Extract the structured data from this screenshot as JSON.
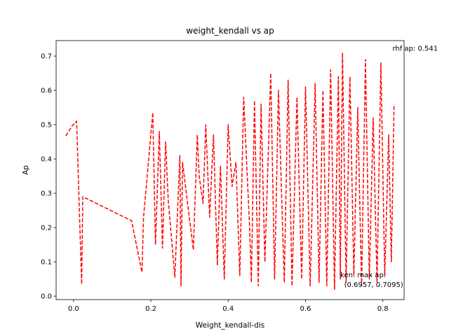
{
  "chart_data": {
    "type": "line",
    "title": "weight_kendall vs ap",
    "xlabel": "Weight_kendall-dis",
    "ylabel": "Ap",
    "xlim": [
      -0.045,
      0.855
    ],
    "ylim": [
      -0.01,
      0.745
    ],
    "xticks": [
      0.0,
      0.2,
      0.4,
      0.6,
      0.8
    ],
    "xtick_labels": [
      "0.0",
      "0.2",
      "0.4",
      "0.6",
      "0.8"
    ],
    "yticks": [
      0.0,
      0.1,
      0.2,
      0.3,
      0.4,
      0.5,
      0.6,
      0.7
    ],
    "ytick_labels": [
      "0.0",
      "0.1",
      "0.2",
      "0.3",
      "0.4",
      "0.5",
      "0.6",
      "0.7"
    ],
    "grid": false,
    "series": [
      {
        "color": "#ff0000",
        "linestyle": "dashed",
        "x": [
          -0.02,
          -0.003,
          0.008,
          0.021,
          0.024,
          0.15,
          0.177,
          0.181,
          0.205,
          0.212,
          0.222,
          0.23,
          0.238,
          0.245,
          0.262,
          0.275,
          0.278,
          0.282,
          0.31,
          0.32,
          0.325,
          0.335,
          0.342,
          0.352,
          0.362,
          0.372,
          0.38,
          0.39,
          0.4,
          0.41,
          0.42,
          0.43,
          0.44,
          0.455,
          0.46,
          0.468,
          0.478,
          0.485,
          0.495,
          0.51,
          0.52,
          0.53,
          0.545,
          0.555,
          0.565,
          0.578,
          0.59,
          0.6,
          0.612,
          0.625,
          0.635,
          0.645,
          0.655,
          0.665,
          0.675,
          0.685,
          0.69,
          0.6957,
          0.705,
          0.715,
          0.725,
          0.735,
          0.745,
          0.755,
          0.765,
          0.775,
          0.785,
          0.795,
          0.805,
          0.815,
          0.822,
          0.829
        ],
        "y": [
          0.467,
          0.497,
          0.51,
          0.035,
          0.29,
          0.22,
          0.07,
          0.23,
          0.535,
          0.15,
          0.48,
          0.14,
          0.45,
          0.28,
          0.055,
          0.41,
          0.03,
          0.39,
          0.135,
          0.47,
          0.35,
          0.27,
          0.5,
          0.23,
          0.47,
          0.09,
          0.38,
          0.05,
          0.5,
          0.32,
          0.39,
          0.06,
          0.58,
          0.21,
          0.04,
          0.57,
          0.03,
          0.56,
          0.1,
          0.65,
          0.05,
          0.6,
          0.04,
          0.63,
          0.03,
          0.58,
          0.05,
          0.61,
          0.03,
          0.62,
          0.04,
          0.6,
          0.03,
          0.66,
          0.02,
          0.64,
          0.05,
          0.7095,
          0.04,
          0.64,
          0.06,
          0.55,
          0.03,
          0.69,
          0.05,
          0.52,
          0.04,
          0.68,
          0.06,
          0.47,
          0.1,
          0.56
        ]
      }
    ],
    "annotations": [
      {
        "text": "rhf ap: 0.541",
        "x": 0.825,
        "y": 0.715
      },
      {
        "text": "ken. max ap:",
        "x": 0.69,
        "y": 0.055
      },
      {
        "text": "(0.6957, 0.7095)",
        "x": 0.7,
        "y": 0.027
      }
    ]
  }
}
